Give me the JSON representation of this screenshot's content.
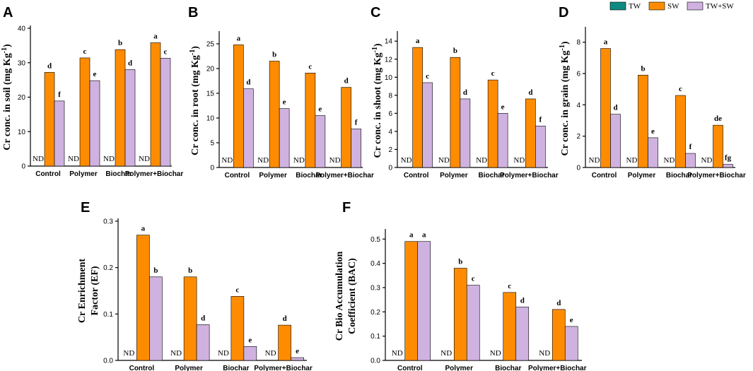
{
  "colors": {
    "TW": "#0e8a80",
    "SW": "#ff8c00",
    "TW+SW": "#cfb2df",
    "ND": "#000000"
  },
  "legend": [
    {
      "name": "TW",
      "color": "#0e8a80"
    },
    {
      "name": "SW",
      "color": "#ff8c00"
    },
    {
      "name": "TW+SW",
      "color": "#cfb2df"
    }
  ],
  "nd_label": "ND",
  "chart_data": [
    {
      "panel": "A",
      "type": "bar",
      "ylabel": "Cr conc. in soil (mg Kg",
      "ylabel_sup": "-1",
      "ylabel_end": ")",
      "ylim": [
        0,
        40
      ],
      "yticks": [
        0,
        10,
        20,
        30,
        40
      ],
      "categories": [
        "Control",
        "Polymer",
        "Biochar",
        "Polymer+Biochar"
      ],
      "series": [
        {
          "name": "TW",
          "values": [
            null,
            null,
            null,
            null
          ]
        },
        {
          "name": "SW",
          "values": [
            27.2,
            31.4,
            33.8,
            35.8
          ]
        },
        {
          "name": "TW+SW",
          "values": [
            18.9,
            24.8,
            28.0,
            31.3
          ]
        }
      ],
      "letters": {
        "SW": [
          "d",
          "c",
          "b",
          "a"
        ],
        "TW+SW": [
          "f",
          "e",
          "d",
          "c"
        ]
      }
    },
    {
      "panel": "B",
      "type": "bar",
      "ylabel": "Cr conc. in root (mg Kg",
      "ylabel_sup": "-1",
      "ylabel_end": ")",
      "ylim": [
        0,
        27
      ],
      "yticks": [
        0,
        5,
        10,
        15,
        20,
        25
      ],
      "categories": [
        "Control",
        "Polymer",
        "Biochar",
        "Polymer+Biochar"
      ],
      "series": [
        {
          "name": "TW",
          "values": [
            null,
            null,
            null,
            null
          ]
        },
        {
          "name": "SW",
          "values": [
            24.8,
            21.5,
            19.1,
            16.2
          ]
        },
        {
          "name": "TW+SW",
          "values": [
            15.9,
            11.9,
            10.5,
            7.8
          ]
        }
      ],
      "letters": {
        "SW": [
          "a",
          "b",
          "c",
          "d"
        ],
        "TW+SW": [
          "d",
          "e",
          "e",
          "f"
        ]
      }
    },
    {
      "panel": "C",
      "type": "bar",
      "ylabel": "Cr conc. in shoot (mg Kg",
      "ylabel_sup": "-1",
      "ylabel_end": ")",
      "ylim": [
        0,
        14.8
      ],
      "yticks": [
        0,
        2,
        4,
        6,
        8,
        10,
        12,
        14
      ],
      "categories": [
        "Control",
        "Polymer",
        "Biochar",
        "Polymer+Biochar"
      ],
      "series": [
        {
          "name": "TW",
          "values": [
            null,
            null,
            null,
            null
          ]
        },
        {
          "name": "SW",
          "values": [
            13.3,
            12.2,
            9.7,
            7.6
          ]
        },
        {
          "name": "TW+SW",
          "values": [
            9.4,
            7.6,
            6.0,
            4.6
          ]
        }
      ],
      "letters": {
        "SW": [
          "a",
          "b",
          "c",
          "d"
        ],
        "TW+SW": [
          "c",
          "d",
          "e",
          "f"
        ]
      }
    },
    {
      "panel": "D",
      "type": "bar",
      "ylabel": "Cr conc. in grain (mg Kg",
      "ylabel_sup": "-1",
      "ylabel_end": ")",
      "ylim": [
        0,
        8.8
      ],
      "yticks": [
        0,
        2,
        4,
        6,
        8
      ],
      "categories": [
        "Control",
        "Polymer",
        "Biochar",
        "Polymer+Biochar"
      ],
      "series": [
        {
          "name": "TW",
          "values": [
            null,
            null,
            null,
            null
          ]
        },
        {
          "name": "SW",
          "values": [
            7.6,
            5.9,
            4.6,
            2.7
          ]
        },
        {
          "name": "TW+SW",
          "values": [
            3.4,
            1.9,
            0.9,
            0.2
          ]
        }
      ],
      "letters": {
        "SW": [
          "a",
          "b",
          "c",
          "de"
        ],
        "TW+SW": [
          "d",
          "e",
          "f",
          "fg"
        ]
      }
    },
    {
      "panel": "E",
      "type": "bar",
      "ylabel": "Cr Enrichment",
      "ylabel2": "Factor (EF)",
      "ylim": [
        0,
        0.3
      ],
      "yticks": [
        0.0,
        0.1,
        0.2,
        0.3
      ],
      "ytick_labels": [
        "0.0",
        "0.1",
        "0.2",
        "0.3"
      ],
      "categories": [
        "Control",
        "Polymer",
        "Biochar",
        "Polymer+Biochar"
      ],
      "series": [
        {
          "name": "TW",
          "values": [
            null,
            null,
            null,
            null
          ]
        },
        {
          "name": "SW",
          "values": [
            0.27,
            0.18,
            0.138,
            0.076
          ]
        },
        {
          "name": "TW+SW",
          "values": [
            0.18,
            0.077,
            0.03,
            0.006
          ]
        }
      ],
      "letters": {
        "SW": [
          "a",
          "b",
          "c",
          "d"
        ],
        "TW+SW": [
          "b",
          "d",
          "e",
          "e"
        ]
      }
    },
    {
      "panel": "F",
      "type": "bar",
      "ylabel": "Cr Bio Accumulation",
      "ylabel2": "Coefficient (BAC)",
      "ylim": [
        0,
        0.53
      ],
      "yticks": [
        0.0,
        0.1,
        0.2,
        0.3,
        0.4,
        0.5
      ],
      "ytick_labels": [
        "0.0",
        "0.1",
        "0.2",
        "0.3",
        "0.4",
        "0.5"
      ],
      "categories": [
        "Control",
        "Polymer",
        "Biochar",
        "Polymer+Biochar"
      ],
      "series": [
        {
          "name": "TW",
          "values": [
            null,
            null,
            null,
            null
          ]
        },
        {
          "name": "SW",
          "values": [
            0.49,
            0.38,
            0.28,
            0.21
          ]
        },
        {
          "name": "TW+SW",
          "values": [
            0.49,
            0.31,
            0.22,
            0.14
          ]
        }
      ],
      "letters": {
        "SW": [
          "a",
          "b",
          "c",
          "d"
        ],
        "TW+SW": [
          "a",
          "c",
          "d",
          "e"
        ]
      }
    }
  ]
}
